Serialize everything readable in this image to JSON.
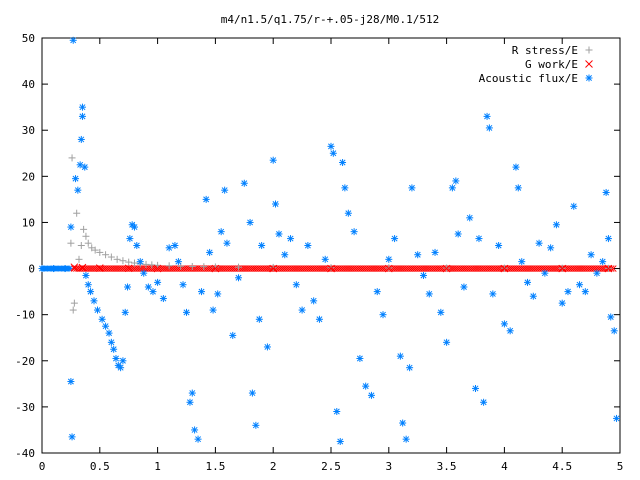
{
  "chart_data": {
    "type": "scatter",
    "title": "m4/n1.5/q1.75/r-+.05-j28/M0.1/512",
    "xlabel": "",
    "ylabel": "",
    "xlim": [
      0,
      5
    ],
    "ylim": [
      -40,
      50
    ],
    "xticks": [
      "0",
      "0.5",
      "1",
      "1.5",
      "2",
      "2.5",
      "3",
      "3.5",
      "4",
      "4.5",
      "5"
    ],
    "yticks": [
      "-40",
      "-30",
      "-20",
      "-10",
      "0",
      "10",
      "20",
      "30",
      "40",
      "50"
    ],
    "grid": false,
    "legend_position": "top-right",
    "series": [
      {
        "name": "R stress/E",
        "marker": "plus",
        "color": "#a0a0a0",
        "points": [
          [
            0.25,
            5.5
          ],
          [
            0.26,
            24.0
          ],
          [
            0.27,
            -9.0
          ],
          [
            0.28,
            -7.5
          ],
          [
            0.3,
            12.0
          ],
          [
            0.32,
            2.0
          ],
          [
            0.34,
            5.0
          ],
          [
            0.36,
            8.5
          ],
          [
            0.38,
            7.0
          ],
          [
            0.4,
            5.5
          ],
          [
            0.43,
            4.5
          ],
          [
            0.46,
            4.0
          ],
          [
            0.5,
            3.5
          ],
          [
            0.55,
            3.0
          ],
          [
            0.6,
            2.5
          ],
          [
            0.65,
            2.0
          ],
          [
            0.7,
            1.7
          ],
          [
            0.75,
            1.4
          ],
          [
            0.8,
            1.2
          ],
          [
            0.85,
            1.0
          ],
          [
            0.9,
            0.9
          ],
          [
            0.95,
            0.8
          ],
          [
            1.0,
            0.7
          ],
          [
            1.1,
            0.6
          ],
          [
            1.2,
            0.5
          ],
          [
            1.3,
            0.45
          ],
          [
            1.4,
            0.4
          ],
          [
            1.5,
            0.35
          ],
          [
            1.7,
            0.3
          ],
          [
            2.0,
            0.25
          ],
          [
            2.5,
            0.2
          ],
          [
            3.0,
            0.15
          ],
          [
            3.5,
            0.12
          ],
          [
            4.0,
            0.1
          ],
          [
            4.5,
            0.08
          ],
          [
            4.9,
            0.05
          ]
        ]
      },
      {
        "name": "G work/E",
        "marker": "cross",
        "color": "#ff0000",
        "points": [
          [
            0.28,
            0.3
          ],
          [
            0.35,
            0.2
          ],
          [
            0.5,
            0.1
          ],
          [
            0.75,
            0.05
          ],
          [
            1.0,
            0.0
          ],
          [
            1.5,
            0.0
          ],
          [
            2.0,
            0.0
          ],
          [
            2.5,
            0.0
          ],
          [
            3.0,
            0.0
          ],
          [
            3.5,
            0.0
          ],
          [
            4.0,
            0.0
          ],
          [
            4.5,
            0.0
          ],
          [
            4.9,
            0.0
          ]
        ]
      },
      {
        "name": "Acoustic flux/E",
        "marker": "star",
        "color": "#0080ff",
        "points": [
          [
            0.0,
            0.0
          ],
          [
            0.1,
            0.0
          ],
          [
            0.2,
            0.0
          ],
          [
            0.25,
            9.0
          ],
          [
            0.25,
            -24.5
          ],
          [
            0.26,
            -36.5
          ],
          [
            0.27,
            49.5
          ],
          [
            0.29,
            19.5
          ],
          [
            0.31,
            17.0
          ],
          [
            0.33,
            22.5
          ],
          [
            0.34,
            28.0
          ],
          [
            0.35,
            33.0
          ],
          [
            0.35,
            35.0
          ],
          [
            0.37,
            22.0
          ],
          [
            0.38,
            -1.5
          ],
          [
            0.4,
            -3.5
          ],
          [
            0.42,
            -5.0
          ],
          [
            0.45,
            -7.0
          ],
          [
            0.48,
            -9.0
          ],
          [
            0.52,
            -11.0
          ],
          [
            0.55,
            -12.5
          ],
          [
            0.58,
            -14.0
          ],
          [
            0.6,
            -16.0
          ],
          [
            0.62,
            -17.5
          ],
          [
            0.64,
            -19.5
          ],
          [
            0.66,
            -21.0
          ],
          [
            0.68,
            -21.5
          ],
          [
            0.7,
            -20.0
          ],
          [
            0.72,
            -9.5
          ],
          [
            0.74,
            -4.0
          ],
          [
            0.76,
            6.5
          ],
          [
            0.78,
            9.5
          ],
          [
            0.8,
            9.0
          ],
          [
            0.82,
            5.0
          ],
          [
            0.85,
            1.5
          ],
          [
            0.88,
            -1.0
          ],
          [
            0.92,
            -4.0
          ],
          [
            0.96,
            -5.0
          ],
          [
            1.0,
            -3.0
          ],
          [
            1.05,
            -6.5
          ],
          [
            1.1,
            4.5
          ],
          [
            1.15,
            5.0
          ],
          [
            1.18,
            1.5
          ],
          [
            1.22,
            -3.5
          ],
          [
            1.25,
            -9.5
          ],
          [
            1.28,
            -29.0
          ],
          [
            1.3,
            -27.0
          ],
          [
            1.32,
            -35.0
          ],
          [
            1.35,
            -37.0
          ],
          [
            1.38,
            -5.0
          ],
          [
            1.42,
            15.0
          ],
          [
            1.45,
            3.5
          ],
          [
            1.48,
            -9.0
          ],
          [
            1.52,
            -5.5
          ],
          [
            1.55,
            8.0
          ],
          [
            1.58,
            17.0
          ],
          [
            1.6,
            5.5
          ],
          [
            1.65,
            -14.5
          ],
          [
            1.7,
            -2.0
          ],
          [
            1.75,
            18.5
          ],
          [
            1.8,
            10.0
          ],
          [
            1.82,
            -27.0
          ],
          [
            1.85,
            -34.0
          ],
          [
            1.88,
            -11.0
          ],
          [
            1.9,
            5.0
          ],
          [
            1.95,
            -17.0
          ],
          [
            2.0,
            23.5
          ],
          [
            2.02,
            14.0
          ],
          [
            2.05,
            7.5
          ],
          [
            2.1,
            3.0
          ],
          [
            2.15,
            6.5
          ],
          [
            2.2,
            -3.5
          ],
          [
            2.25,
            -9.0
          ],
          [
            2.3,
            5.0
          ],
          [
            2.35,
            -7.0
          ],
          [
            2.4,
            -11.0
          ],
          [
            2.45,
            2.0
          ],
          [
            2.5,
            26.5
          ],
          [
            2.52,
            25.0
          ],
          [
            2.55,
            -31.0
          ],
          [
            2.58,
            -37.5
          ],
          [
            2.6,
            23.0
          ],
          [
            2.62,
            17.5
          ],
          [
            2.65,
            12.0
          ],
          [
            2.7,
            8.0
          ],
          [
            2.75,
            -19.5
          ],
          [
            2.8,
            -25.5
          ],
          [
            2.85,
            -27.5
          ],
          [
            2.9,
            -5.0
          ],
          [
            2.95,
            -10.0
          ],
          [
            3.0,
            2.0
          ],
          [
            3.05,
            6.5
          ],
          [
            3.1,
            -19.0
          ],
          [
            3.12,
            -33.5
          ],
          [
            3.15,
            -37.0
          ],
          [
            3.18,
            -21.5
          ],
          [
            3.2,
            17.5
          ],
          [
            3.25,
            3.0
          ],
          [
            3.3,
            -1.5
          ],
          [
            3.35,
            -5.5
          ],
          [
            3.4,
            3.5
          ],
          [
            3.45,
            -9.5
          ],
          [
            3.5,
            -16.0
          ],
          [
            3.55,
            17.5
          ],
          [
            3.58,
            19.0
          ],
          [
            3.6,
            7.5
          ],
          [
            3.65,
            -4.0
          ],
          [
            3.7,
            11.0
          ],
          [
            3.75,
            -26.0
          ],
          [
            3.78,
            6.5
          ],
          [
            3.82,
            -29.0
          ],
          [
            3.85,
            33.0
          ],
          [
            3.87,
            30.5
          ],
          [
            3.9,
            -5.5
          ],
          [
            3.95,
            5.0
          ],
          [
            4.0,
            -12.0
          ],
          [
            4.05,
            -13.5
          ],
          [
            4.1,
            22.0
          ],
          [
            4.12,
            17.5
          ],
          [
            4.15,
            1.5
          ],
          [
            4.2,
            -3.0
          ],
          [
            4.25,
            -6.0
          ],
          [
            4.3,
            5.5
          ],
          [
            4.35,
            -1.0
          ],
          [
            4.4,
            4.5
          ],
          [
            4.45,
            9.5
          ],
          [
            4.5,
            -7.5
          ],
          [
            4.55,
            -5.0
          ],
          [
            4.6,
            13.5
          ],
          [
            4.65,
            -3.5
          ],
          [
            4.7,
            -5.0
          ],
          [
            4.75,
            3.0
          ],
          [
            4.8,
            -1.0
          ],
          [
            4.85,
            1.5
          ],
          [
            4.88,
            16.5
          ],
          [
            4.9,
            6.5
          ],
          [
            4.92,
            -10.5
          ],
          [
            4.95,
            -13.5
          ],
          [
            4.97,
            -32.5
          ]
        ]
      }
    ]
  }
}
